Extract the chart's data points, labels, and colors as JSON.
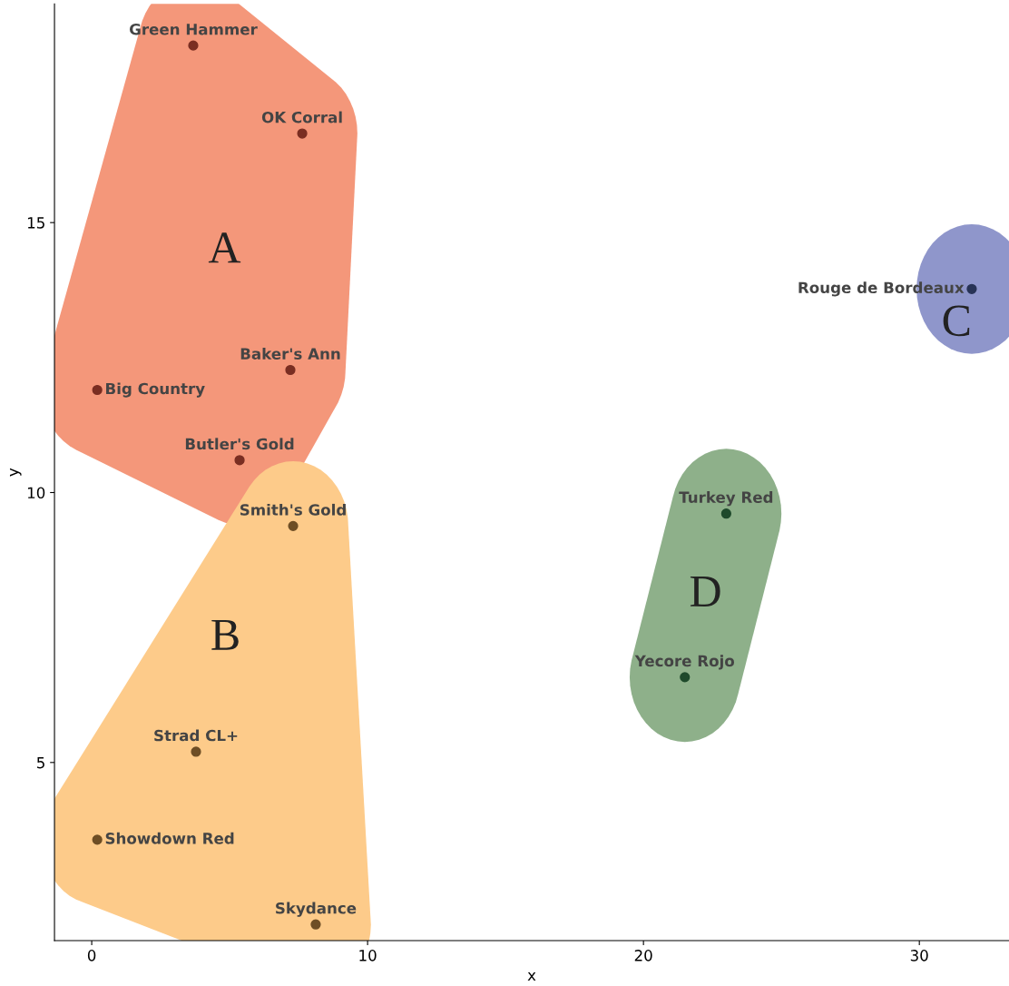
{
  "chart_data": {
    "type": "scatter",
    "xlabel": "x",
    "ylabel": "y",
    "xlim": [
      -1.35,
      33.25
    ],
    "ylim": [
      1.7,
      19.05
    ],
    "xticks": [
      0,
      10,
      20,
      30
    ],
    "yticks": [
      5,
      10,
      15
    ],
    "grid": false,
    "legend": false,
    "marker": "circle",
    "series": [
      {
        "name": "A",
        "color": "#7a2e22",
        "x": [
          3.68,
          7.63,
          7.2,
          0.2,
          5.36
        ],
        "values": [
          18.28,
          16.65,
          12.27,
          11.9,
          10.6
        ]
      },
      {
        "name": "B",
        "color": "#6e4e25",
        "x": [
          7.3,
          3.78,
          0.2,
          8.12
        ],
        "values": [
          9.38,
          5.2,
          3.57,
          2.0
        ]
      },
      {
        "name": "C",
        "color": "#283356",
        "x": [
          31.9
        ],
        "values": [
          13.77
        ]
      },
      {
        "name": "D",
        "color": "#1f4a2c",
        "x": [
          23.0,
          21.5
        ],
        "values": [
          9.61,
          6.58
        ]
      }
    ],
    "annotations": [
      {
        "text": "Green Hammer",
        "x": 3.68,
        "y": 18.28
      },
      {
        "text": "OK Corral",
        "x": 7.63,
        "y": 16.65
      },
      {
        "text": "Baker's Ann",
        "x": 7.2,
        "y": 12.27
      },
      {
        "text": "Big Country",
        "x": 0.2,
        "y": 11.9
      },
      {
        "text": "Butler's Gold",
        "x": 5.36,
        "y": 10.6
      },
      {
        "text": "Smith's Gold",
        "x": 7.3,
        "y": 9.38
      },
      {
        "text": "Strad CL+",
        "x": 3.78,
        "y": 5.2
      },
      {
        "text": "Showdown Red",
        "x": 0.2,
        "y": 3.57
      },
      {
        "text": "Skydance",
        "x": 8.12,
        "y": 2.0
      },
      {
        "text": "Rouge de Bordeaux",
        "x": 31.9,
        "y": 13.77
      },
      {
        "text": "Turkey Red",
        "x": 23.0,
        "y": 9.61
      },
      {
        "text": "Yecore Rojo",
        "x": 21.5,
        "y": 6.58
      }
    ]
  }
}
